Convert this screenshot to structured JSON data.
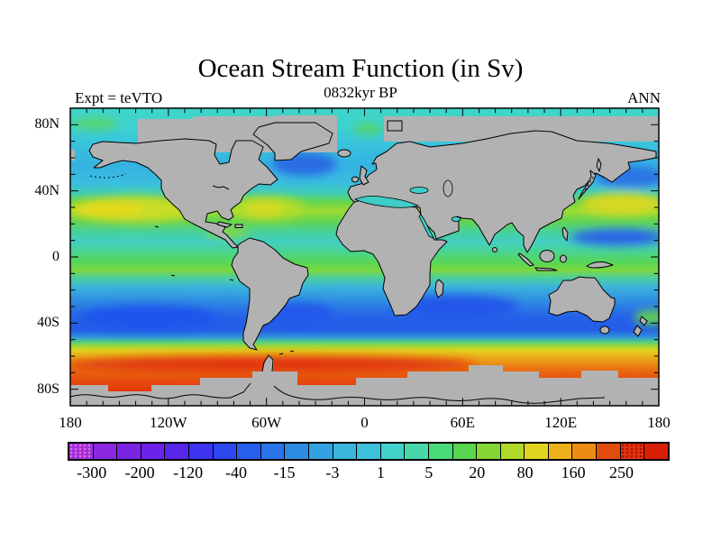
{
  "header": {
    "title": "Ocean Stream Function (in Sv)",
    "subtitle": "0832kyr BP",
    "experiment_label": "Expt = teVTO",
    "season_label": "ANN"
  },
  "axes": {
    "y_tick_labels": [
      "80N",
      "40N",
      "0",
      "40S",
      "80S"
    ],
    "y_tick_lats": [
      80,
      40,
      0,
      -40,
      -80
    ],
    "x_tick_labels": [
      "180",
      "120W",
      "60W",
      "0",
      "60E",
      "120E",
      "180"
    ],
    "x_tick_lons": [
      -180,
      -120,
      -60,
      0,
      60,
      120,
      180
    ]
  },
  "colorbar": {
    "labels": [
      "-300",
      "-200",
      "-120",
      "-40",
      "-15",
      "-3",
      "1",
      "5",
      "20",
      "80",
      "160",
      "250"
    ],
    "colors": [
      "#9c32da",
      "#8a28e2",
      "#7c24e6",
      "#6c22e8",
      "#5626ea",
      "#3c34ee",
      "#2c48ee",
      "#285eec",
      "#2874e8",
      "#2c8ce2",
      "#32a2e0",
      "#3ab6de",
      "#3cc0dc",
      "#42d2cc",
      "#46d8a8",
      "#48da78",
      "#58d44e",
      "#84d634",
      "#b0d828",
      "#e0d420",
      "#ecb01a",
      "#ec8c12",
      "#e24c0e",
      "#e23210",
      "#d81f06"
    ],
    "speckled_cells": [
      0,
      23
    ]
  },
  "map": {
    "land_color": "#b2b2b2",
    "coastline_color": "#000000"
  },
  "chart_data": {
    "type": "heatmap",
    "subtype": "filled_contour_world_map",
    "title": "Ocean Stream Function (in Sv)",
    "subtitle": "0832kyr BP",
    "experiment": "teVTO",
    "season": "ANN",
    "units": "Sv",
    "projection": "equirectangular",
    "lon_range": [
      -180,
      180
    ],
    "lat_range": [
      -90,
      90
    ],
    "x_tick_labels": [
      "180",
      "120W",
      "60W",
      "0",
      "60E",
      "120E",
      "180"
    ],
    "y_tick_labels": [
      "80N",
      "40N",
      "0",
      "40S",
      "80S"
    ],
    "contour_levels_labeled": [
      -300,
      -200,
      -120,
      -40,
      -15,
      -3,
      1,
      5,
      20,
      80,
      160,
      250
    ],
    "palette_n_segments": 25,
    "legend_position": "bottom",
    "grid": false,
    "zonal_bands_read_from_map": [
      {
        "lat_band": "65N-90N",
        "approx_value_sv": "-3 to 5",
        "appearance": "turquoise-cyan with small green patches"
      },
      {
        "lat_band": "45N-65N",
        "approx_value_sv": "-15 to -3; subpolar gyres to -40",
        "appearance": "light blue; dark blue patches S of Greenland and NE of Japan"
      },
      {
        "lat_band": "20N-40N",
        "approx_value_sv": "20 to 80",
        "appearance": "green with yellow-green subtropical gyre cores in N Pacific, N Atlantic, E of Japan"
      },
      {
        "lat_band": "5N-20N",
        "approx_value_sv": "1 to 20; to -15 east of Philippines",
        "appearance": "green / cyan-green with a blue patch in west Pacific"
      },
      {
        "lat_band": "10S-5N",
        "approx_value_sv": "5 to 40",
        "appearance": "green band with yellow-green stripe near 5S"
      },
      {
        "lat_band": "45S-10S",
        "approx_value_sv": "-40 to -3; gyre cores to -120",
        "appearance": "blue with darkest blue in S Pacific, S Atlantic, S Indian gyres"
      },
      {
        "lat_band": "52S-45S",
        "approx_value_sv": "20 to 160",
        "appearance": "sharp green-yellow transition band"
      },
      {
        "lat_band": "70S-52S",
        "approx_value_sv": "160 to 250+",
        "appearance": "orange to red Antarctic Circumpolar Current maximum"
      },
      {
        "lat_band": "90S-70S and continents",
        "approx_value_sv": null,
        "appearance": "gray land/ice mask with black coastlines"
      }
    ]
  }
}
